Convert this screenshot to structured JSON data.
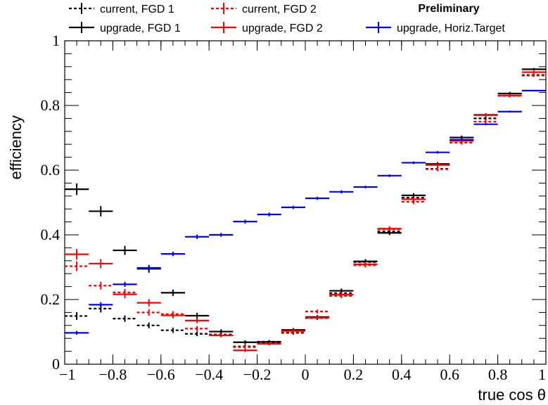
{
  "chart_data": {
    "type": "scatter",
    "xlabel": "true cos θ",
    "ylabel": "efficiency",
    "annotation": "Preliminary",
    "xlim": [
      -1,
      1
    ],
    "ylim": [
      0,
      1
    ],
    "x_ticks": [
      -1,
      -0.8,
      -0.6,
      -0.4,
      -0.2,
      0,
      0.2,
      0.4,
      0.6,
      0.8,
      1
    ],
    "x_tick_labels": [
      "−1",
      "−0.8",
      "−0.6",
      "−0.4",
      "−0.2",
      "0",
      "0.2",
      "0.4",
      "0.6",
      "0.8",
      "1"
    ],
    "y_ticks": [
      0,
      0.2,
      0.4,
      0.6,
      0.8,
      1
    ],
    "y_tick_labels": [
      "0",
      "0.2",
      "0.4",
      "0.6",
      "0.8",
      "1"
    ],
    "legend_placement": "top",
    "grid": false,
    "series": [
      {
        "name": "current, FGD 1",
        "color": "#000000",
        "style": "dashed",
        "points": [
          {
            "x0": -1.0,
            "x1": -0.9,
            "y": 0.149,
            "err": 0.012
          },
          {
            "x0": -0.9,
            "x1": -0.8,
            "y": 0.172,
            "err": 0.012
          },
          {
            "x0": -0.8,
            "x1": -0.7,
            "y": 0.141,
            "err": 0.01
          },
          {
            "x0": -0.7,
            "x1": -0.6,
            "y": 0.12,
            "err": 0.009
          },
          {
            "x0": -0.6,
            "x1": -0.5,
            "y": 0.105,
            "err": 0.008
          },
          {
            "x0": -0.5,
            "x1": -0.4,
            "y": 0.094,
            "err": 0.007
          },
          {
            "x0": -0.4,
            "x1": -0.3,
            "y": 0.092,
            "err": 0.006
          },
          {
            "x0": -0.3,
            "x1": -0.2,
            "y": 0.055,
            "err": 0.006
          },
          {
            "x0": -0.2,
            "x1": -0.1,
            "y": 0.066,
            "err": 0.005
          },
          {
            "x0": -0.1,
            "x1": 0.0,
            "y": 0.097,
            "err": 0.006
          },
          {
            "x0": 0.0,
            "x1": 0.1,
            "y": 0.143,
            "err": 0.006
          },
          {
            "x0": 0.1,
            "x1": 0.2,
            "y": 0.22,
            "err": 0.007
          },
          {
            "x0": 0.2,
            "x1": 0.3,
            "y": 0.316,
            "err": 0.007
          },
          {
            "x0": 0.3,
            "x1": 0.4,
            "y": 0.41,
            "err": 0.007
          },
          {
            "x0": 0.4,
            "x1": 0.5,
            "y": 0.515,
            "err": 0.007
          },
          {
            "x0": 0.5,
            "x1": 0.6,
            "y": 0.604,
            "err": 0.006
          },
          {
            "x0": 0.6,
            "x1": 0.7,
            "y": 0.692,
            "err": 0.006
          },
          {
            "x0": 0.7,
            "x1": 0.8,
            "y": 0.76,
            "err": 0.005
          },
          {
            "x0": 0.8,
            "x1": 0.9,
            "y": 0.83,
            "err": 0.005
          },
          {
            "x0": 0.9,
            "x1": 1.0,
            "y": 0.893,
            "err": 0.004
          }
        ]
      },
      {
        "name": "current, FGD 2",
        "color": "#ff0000",
        "style": "dashed",
        "points": [
          {
            "x0": -1.0,
            "x1": -0.9,
            "y": 0.303,
            "err": 0.015
          },
          {
            "x0": -0.9,
            "x1": -0.8,
            "y": 0.243,
            "err": 0.012
          },
          {
            "x0": -0.8,
            "x1": -0.7,
            "y": 0.222,
            "err": 0.011
          },
          {
            "x0": -0.7,
            "x1": -0.6,
            "y": 0.16,
            "err": 0.01
          },
          {
            "x0": -0.6,
            "x1": -0.5,
            "y": 0.155,
            "err": 0.009
          },
          {
            "x0": -0.5,
            "x1": -0.4,
            "y": 0.11,
            "err": 0.008
          },
          {
            "x0": -0.4,
            "x1": -0.3,
            "y": 0.09,
            "err": 0.006
          },
          {
            "x0": -0.3,
            "x1": -0.2,
            "y": 0.053,
            "err": 0.005
          },
          {
            "x0": -0.2,
            "x1": -0.1,
            "y": 0.07,
            "err": 0.005
          },
          {
            "x0": -0.1,
            "x1": 0.0,
            "y": 0.1,
            "err": 0.006
          },
          {
            "x0": 0.0,
            "x1": 0.1,
            "y": 0.163,
            "err": 0.006
          },
          {
            "x0": 0.1,
            "x1": 0.2,
            "y": 0.211,
            "err": 0.007
          },
          {
            "x0": 0.2,
            "x1": 0.3,
            "y": 0.306,
            "err": 0.007
          },
          {
            "x0": 0.3,
            "x1": 0.4,
            "y": 0.417,
            "err": 0.007
          },
          {
            "x0": 0.4,
            "x1": 0.5,
            "y": 0.502,
            "err": 0.007
          },
          {
            "x0": 0.5,
            "x1": 0.6,
            "y": 0.603,
            "err": 0.006
          },
          {
            "x0": 0.6,
            "x1": 0.7,
            "y": 0.685,
            "err": 0.006
          },
          {
            "x0": 0.7,
            "x1": 0.8,
            "y": 0.75,
            "err": 0.005
          },
          {
            "x0": 0.8,
            "x1": 0.9,
            "y": 0.83,
            "err": 0.005
          },
          {
            "x0": 0.9,
            "x1": 1.0,
            "y": 0.895,
            "err": 0.004
          }
        ]
      },
      {
        "name": "upgrade, FGD 1",
        "color": "#000000",
        "style": "solid",
        "points": [
          {
            "x0": -1.0,
            "x1": -0.9,
            "y": 0.541,
            "err": 0.018
          },
          {
            "x0": -0.9,
            "x1": -0.8,
            "y": 0.473,
            "err": 0.016
          },
          {
            "x0": -0.8,
            "x1": -0.7,
            "y": 0.352,
            "err": 0.014
          },
          {
            "x0": -0.7,
            "x1": -0.6,
            "y": 0.295,
            "err": 0.012
          },
          {
            "x0": -0.6,
            "x1": -0.5,
            "y": 0.221,
            "err": 0.01
          },
          {
            "x0": -0.5,
            "x1": -0.4,
            "y": 0.15,
            "err": 0.009
          },
          {
            "x0": -0.4,
            "x1": -0.3,
            "y": 0.101,
            "err": 0.007
          },
          {
            "x0": -0.3,
            "x1": -0.2,
            "y": 0.068,
            "err": 0.006
          },
          {
            "x0": -0.2,
            "x1": -0.1,
            "y": 0.069,
            "err": 0.005
          },
          {
            "x0": -0.1,
            "x1": 0.0,
            "y": 0.106,
            "err": 0.006
          },
          {
            "x0": 0.0,
            "x1": 0.1,
            "y": 0.146,
            "err": 0.006
          },
          {
            "x0": 0.1,
            "x1": 0.2,
            "y": 0.227,
            "err": 0.007
          },
          {
            "x0": 0.2,
            "x1": 0.3,
            "y": 0.318,
            "err": 0.007
          },
          {
            "x0": 0.3,
            "x1": 0.4,
            "y": 0.406,
            "err": 0.007
          },
          {
            "x0": 0.4,
            "x1": 0.5,
            "y": 0.522,
            "err": 0.007
          },
          {
            "x0": 0.5,
            "x1": 0.6,
            "y": 0.619,
            "err": 0.006
          },
          {
            "x0": 0.6,
            "x1": 0.7,
            "y": 0.701,
            "err": 0.006
          },
          {
            "x0": 0.7,
            "x1": 0.8,
            "y": 0.771,
            "err": 0.005
          },
          {
            "x0": 0.8,
            "x1": 0.9,
            "y": 0.837,
            "err": 0.005
          },
          {
            "x0": 0.9,
            "x1": 1.0,
            "y": 0.912,
            "err": 0.004
          }
        ]
      },
      {
        "name": "upgrade, FGD 2",
        "color": "#ff0000",
        "style": "solid",
        "points": [
          {
            "x0": -1.0,
            "x1": -0.9,
            "y": 0.34,
            "err": 0.016
          },
          {
            "x0": -0.9,
            "x1": -0.8,
            "y": 0.311,
            "err": 0.014
          },
          {
            "x0": -0.8,
            "x1": -0.7,
            "y": 0.216,
            "err": 0.012
          },
          {
            "x0": -0.7,
            "x1": -0.6,
            "y": 0.19,
            "err": 0.011
          },
          {
            "x0": -0.6,
            "x1": -0.5,
            "y": 0.151,
            "err": 0.009
          },
          {
            "x0": -0.5,
            "x1": -0.4,
            "y": 0.135,
            "err": 0.008
          },
          {
            "x0": -0.4,
            "x1": -0.3,
            "y": 0.089,
            "err": 0.006
          },
          {
            "x0": -0.3,
            "x1": -0.2,
            "y": 0.043,
            "err": 0.005
          },
          {
            "x0": -0.2,
            "x1": -0.1,
            "y": 0.063,
            "err": 0.005
          },
          {
            "x0": -0.1,
            "x1": 0.0,
            "y": 0.103,
            "err": 0.006
          },
          {
            "x0": 0.0,
            "x1": 0.1,
            "y": 0.144,
            "err": 0.006
          },
          {
            "x0": 0.1,
            "x1": 0.2,
            "y": 0.215,
            "err": 0.007
          },
          {
            "x0": 0.2,
            "x1": 0.3,
            "y": 0.309,
            "err": 0.007
          },
          {
            "x0": 0.3,
            "x1": 0.4,
            "y": 0.419,
            "err": 0.007
          },
          {
            "x0": 0.4,
            "x1": 0.5,
            "y": 0.51,
            "err": 0.007
          },
          {
            "x0": 0.5,
            "x1": 0.6,
            "y": 0.616,
            "err": 0.006
          },
          {
            "x0": 0.6,
            "x1": 0.7,
            "y": 0.691,
            "err": 0.006
          },
          {
            "x0": 0.7,
            "x1": 0.8,
            "y": 0.77,
            "err": 0.005
          },
          {
            "x0": 0.8,
            "x1": 0.9,
            "y": 0.831,
            "err": 0.005
          },
          {
            "x0": 0.9,
            "x1": 1.0,
            "y": 0.903,
            "err": 0.004
          }
        ]
      },
      {
        "name": "upgrade, Horiz.Target",
        "color": "#0000ff",
        "style": "solid",
        "points": [
          {
            "x0": -1.0,
            "x1": -0.9,
            "y": 0.097,
            "err": 0.006
          },
          {
            "x0": -0.9,
            "x1": -0.8,
            "y": 0.184,
            "err": 0.008
          },
          {
            "x0": -0.8,
            "x1": -0.7,
            "y": 0.247,
            "err": 0.008
          },
          {
            "x0": -0.7,
            "x1": -0.6,
            "y": 0.298,
            "err": 0.008
          },
          {
            "x0": -0.6,
            "x1": -0.5,
            "y": 0.341,
            "err": 0.007
          },
          {
            "x0": -0.5,
            "x1": -0.4,
            "y": 0.394,
            "err": 0.007
          },
          {
            "x0": -0.4,
            "x1": -0.3,
            "y": 0.4,
            "err": 0.006
          },
          {
            "x0": -0.3,
            "x1": -0.2,
            "y": 0.441,
            "err": 0.006
          },
          {
            "x0": -0.2,
            "x1": -0.1,
            "y": 0.463,
            "err": 0.006
          },
          {
            "x0": -0.1,
            "x1": 0.0,
            "y": 0.485,
            "err": 0.005
          },
          {
            "x0": 0.0,
            "x1": 0.1,
            "y": 0.513,
            "err": 0.005
          },
          {
            "x0": 0.1,
            "x1": 0.2,
            "y": 0.533,
            "err": 0.005
          },
          {
            "x0": 0.2,
            "x1": 0.3,
            "y": 0.548,
            "err": 0.004
          },
          {
            "x0": 0.3,
            "x1": 0.4,
            "y": 0.583,
            "err": 0.004
          },
          {
            "x0": 0.4,
            "x1": 0.5,
            "y": 0.623,
            "err": 0.004
          },
          {
            "x0": 0.5,
            "x1": 0.6,
            "y": 0.655,
            "err": 0.004
          },
          {
            "x0": 0.6,
            "x1": 0.7,
            "y": 0.694,
            "err": 0.003
          },
          {
            "x0": 0.7,
            "x1": 0.8,
            "y": 0.742,
            "err": 0.003
          },
          {
            "x0": 0.8,
            "x1": 0.9,
            "y": 0.781,
            "err": 0.003
          },
          {
            "x0": 0.9,
            "x1": 1.0,
            "y": 0.846,
            "err": 0.002
          }
        ]
      }
    ],
    "legend": [
      {
        "label": "current, FGD 1",
        "series": 0
      },
      {
        "label": "current, FGD 2",
        "series": 1
      },
      {
        "label": "upgrade, FGD 1",
        "series": 2
      },
      {
        "label": "upgrade, FGD 2",
        "series": 3
      },
      {
        "label": "upgrade, Horiz.Target",
        "series": 4
      }
    ]
  }
}
